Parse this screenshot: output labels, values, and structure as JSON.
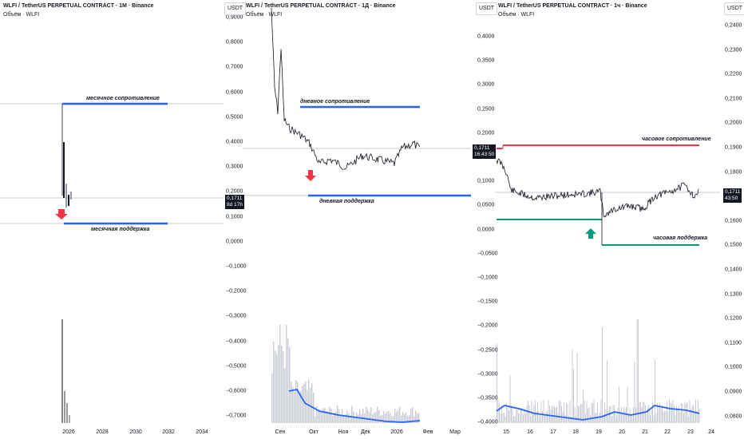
{
  "panels": [
    {
      "title": "WLFI / TetherUS PERPETUAL CONTRACT · 1M · Binance",
      "volume_label": "Объём · WLFI",
      "unit": "USDT",
      "y_ticks": [
        "0,9000",
        "0,8000",
        "0,7000",
        "0,6000",
        "0,5000",
        "0,4000",
        "0,3000",
        "0,2000",
        "0,1000",
        "0,0000",
        "−0,1000",
        "−0,2000",
        "−0,3000",
        "−0,4000",
        "−0,5000",
        "−0,6000",
        "−0,7000"
      ],
      "x_ticks": [
        "2026",
        "2028",
        "2030",
        "2032",
        "2034"
      ],
      "price_tag": {
        "price": "0,1711",
        "timer": "8d 17h"
      },
      "resistance_label": "месячное сопротивление",
      "support_label": "месячная поддержка",
      "arrow_icon": "down-arrow-icon",
      "colors": {
        "level": "#2962ff",
        "arrow": "#f23645"
      }
    },
    {
      "title": "WLFI / TetherUS PERPETUAL CONTRACT · 1Д · Binance",
      "volume_label": "Объём · WLFI",
      "unit": "USDT",
      "y_ticks": [
        "0,4000",
        "0,3500",
        "0,3000",
        "0,2500",
        "0,2000",
        "0,1500",
        "0,1000",
        "0,0500",
        "0,0000",
        "−0,0500",
        "−0,1000",
        "−0,1500",
        "−0,2000",
        "−0,2500",
        "−0,3000",
        "−0,3500",
        "−0,4000"
      ],
      "x_ticks": [
        "Сен",
        "Окт",
        "Ноя",
        "Дек",
        "2026",
        "Фев",
        "Мар"
      ],
      "price_tag": {
        "price": "0,1711",
        "timer": "16:43:50"
      },
      "resistance_label": "дневное сопротивление",
      "support_label": "дневная поддержка",
      "arrow_icon": "down-arrow-icon",
      "colors": {
        "level": "#2962ff",
        "arrow": "#f23645"
      }
    },
    {
      "title": "WLFI / TetherUS PERPETUAL CONTRACT · 1ч · Binance",
      "volume_label": "Объём · WLFI",
      "unit": "USDT",
      "y_ticks": [
        "0,2400",
        "0,2300",
        "0,2200",
        "0,2100",
        "0,2000",
        "0,1900",
        "0,1800",
        "0,1700",
        "0,1600",
        "0,1500",
        "0,1400",
        "0,1300",
        "0,1200",
        "0,1100",
        "0,1000",
        "0,0900",
        "0,0800"
      ],
      "x_ticks": [
        "15",
        "16",
        "17",
        "18",
        "19",
        "20",
        "21",
        "22",
        "23",
        "24"
      ],
      "price_tag": {
        "price": "0,1711",
        "timer": "43:50"
      },
      "resistance_label": "часовое сопротивление",
      "support_label": "часовая поддержка",
      "arrow_icon": "up-arrow-icon",
      "colors": {
        "resistance": "#f23645",
        "support": "#089981",
        "arrow": "#089981",
        "volume_ma": "#2962ff"
      }
    }
  ]
}
